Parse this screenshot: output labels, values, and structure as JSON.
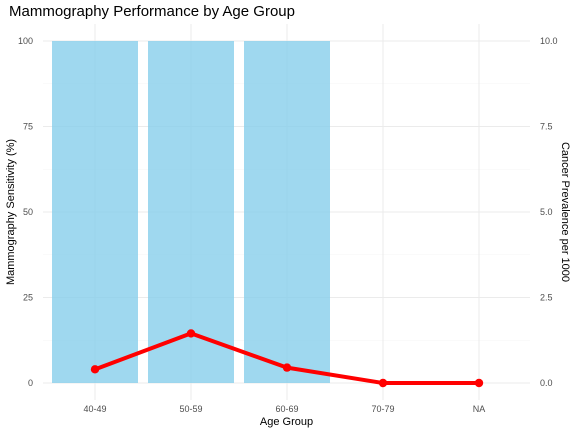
{
  "chart_data": {
    "type": "bar",
    "title": "Mammography Performance by Age Group",
    "xlabel": "Age Group",
    "ylabel": "Mammography Sensitivity (%)",
    "y2label": "Cancer Prevalence per 1000",
    "categories": [
      "40-49",
      "50-59",
      "60-69",
      "70-79",
      "NA"
    ],
    "bars": {
      "values": [
        100,
        100,
        100,
        null,
        null
      ],
      "color": "#87ceeb"
    },
    "line": {
      "axis": "secondary",
      "values": [
        0.4,
        1.45,
        0.45,
        0.0,
        0.0
      ],
      "color": "#ff0000"
    },
    "ylim": [
      0,
      100
    ],
    "y2lim": [
      0,
      10
    ],
    "yticks": [
      "0",
      "25",
      "50",
      "75",
      "100"
    ],
    "y2ticks": [
      "0.0",
      "2.5",
      "5.0",
      "7.5",
      "10.0"
    ],
    "grid": true,
    "legend": "none"
  }
}
